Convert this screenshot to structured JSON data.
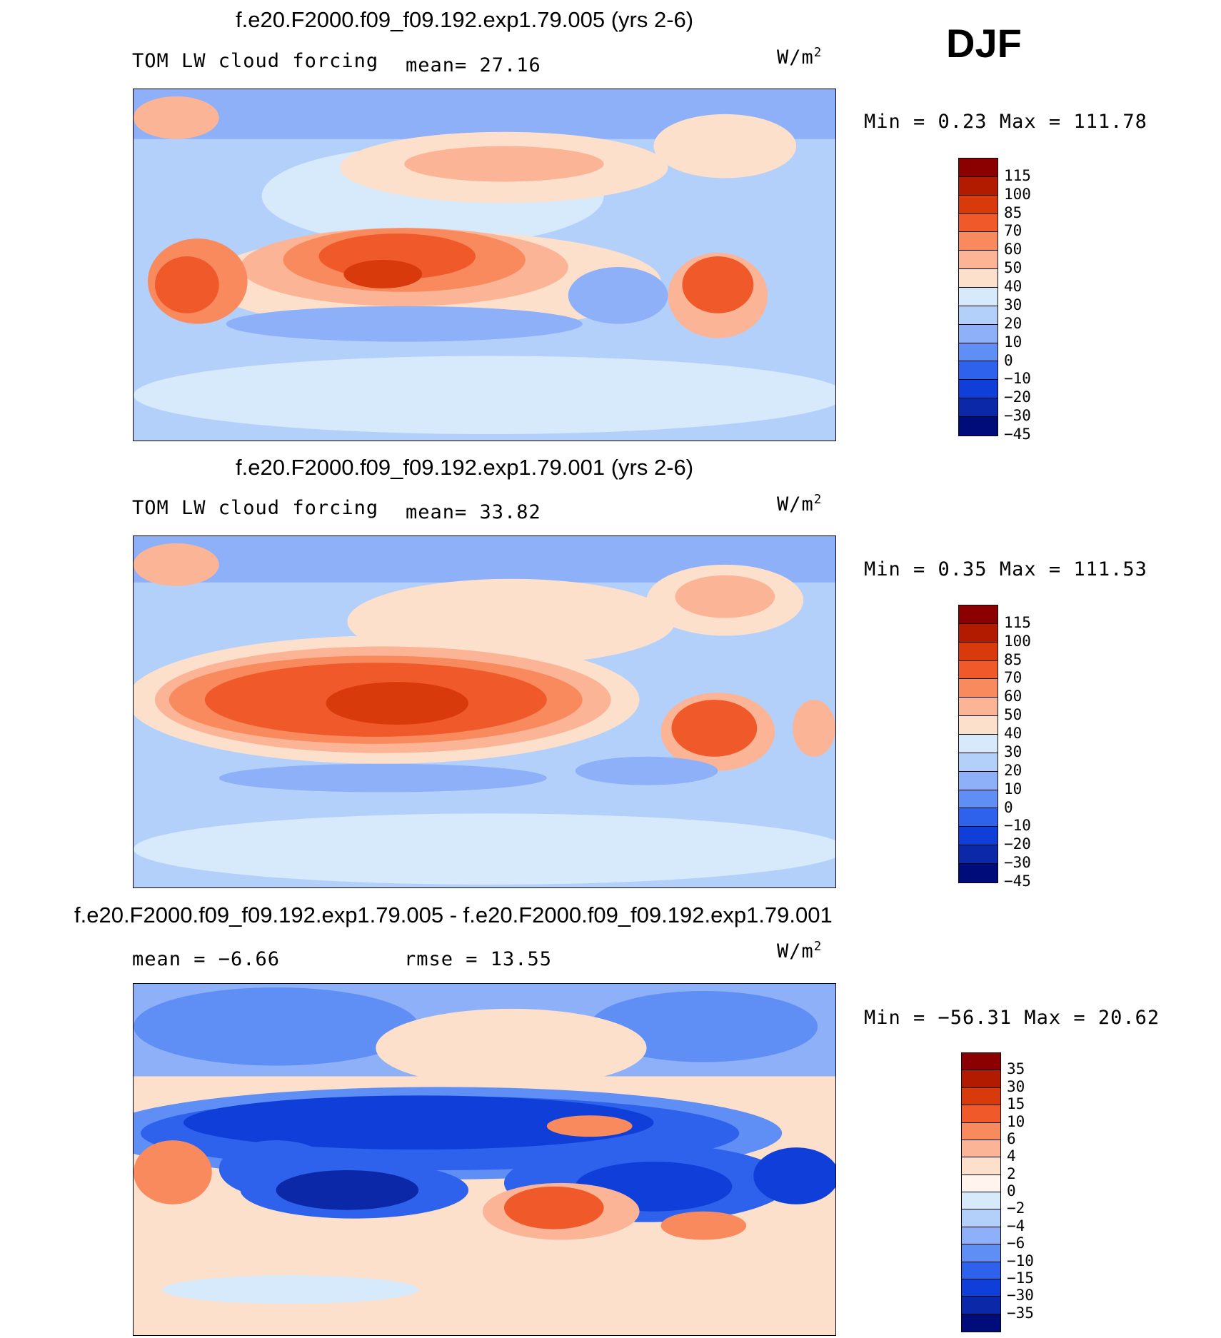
{
  "season": "DJF",
  "panels": [
    {
      "title": "f.e20.F2000.f09_f09.192.exp1.79.005 (yrs 2-6)",
      "left_label": "TOM LW cloud forcing",
      "mid_label": "mean=  27.16",
      "units": "W/m",
      "units_sup": "2",
      "minmax": "Min =   0.23 Max = 111.78",
      "colorbar": {
        "colors": [
          "#8b0000",
          "#b31b00",
          "#d93a0b",
          "#f05a2a",
          "#f98a5e",
          "#fcb497",
          "#fde0cc",
          "#d6eafb",
          "#b3d0fb",
          "#8db0f8",
          "#5f8ff5",
          "#2e62ec",
          "#0f3fd8",
          "#0a28a8",
          "#000c7a"
        ],
        "labels": [
          "115",
          "100",
          "85",
          "70",
          "60",
          "50",
          "40",
          "30",
          "20",
          "10",
          "0",
          "−10",
          "−20",
          "−30",
          "−45"
        ]
      }
    },
    {
      "title": "f.e20.F2000.f09_f09.192.exp1.79.001 (yrs 2-6)",
      "left_label": "TOM LW cloud forcing",
      "mid_label": "mean=  33.82",
      "units": "W/m",
      "units_sup": "2",
      "minmax": "Min =   0.35 Max = 111.53",
      "colorbar": {
        "colors": [
          "#8b0000",
          "#b31b00",
          "#d93a0b",
          "#f05a2a",
          "#f98a5e",
          "#fcb497",
          "#fde0cc",
          "#d6eafb",
          "#b3d0fb",
          "#8db0f8",
          "#5f8ff5",
          "#2e62ec",
          "#0f3fd8",
          "#0a28a8",
          "#000c7a"
        ],
        "labels": [
          "115",
          "100",
          "85",
          "70",
          "60",
          "50",
          "40",
          "30",
          "20",
          "10",
          "0",
          "−10",
          "−20",
          "−30",
          "−45"
        ]
      }
    },
    {
      "title": "f.e20.F2000.f09_f09.192.exp1.79.005 - f.e20.F2000.f09_f09.192.exp1.79.001",
      "left_label": "mean =  −6.66",
      "mid_label": "rmse =   13.55",
      "units": "W/m",
      "units_sup": "2",
      "minmax": "Min = −56.31 Max =  20.62",
      "colorbar": {
        "colors": [
          "#8b0000",
          "#b31b00",
          "#d93a0b",
          "#f05a2a",
          "#f98a5e",
          "#fcb497",
          "#fde0cc",
          "#fff5ee",
          "#d6eafb",
          "#b3d0fb",
          "#8db0f8",
          "#5f8ff5",
          "#2e62ec",
          "#0f3fd8",
          "#0a28a8",
          "#000c7a"
        ],
        "labels": [
          "35",
          "30",
          "15",
          "10",
          "6",
          "4",
          "2",
          "0",
          "−2",
          "−4",
          "−6",
          "−10",
          "−15",
          "−30",
          "−35"
        ]
      }
    }
  ]
}
